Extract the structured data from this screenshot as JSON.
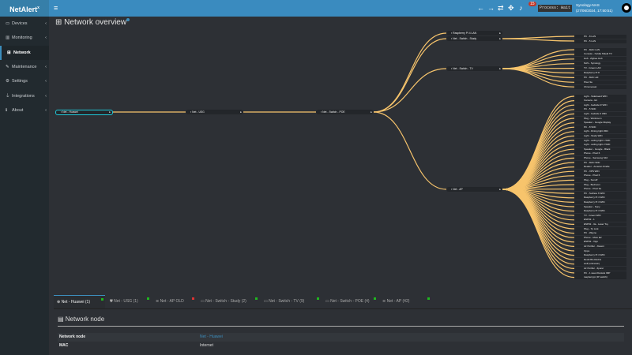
{
  "app": {
    "logo": "NetAlert",
    "logo_sup": "x",
    "menu_icon": "hamburger-icon"
  },
  "topbar": {
    "icons": [
      "arrow-left-icon",
      "arrow-right-icon",
      "refresh-icon",
      "move-icon",
      "bell-icon"
    ],
    "notifications": "15",
    "process": "Process: Wait",
    "host": "Synology-NAS",
    "datetime": "(27/06/2024, 17:50:51)"
  },
  "sidebar": {
    "items": [
      {
        "label": "Devices",
        "icon": "laptop-icon",
        "chev": "‹"
      },
      {
        "label": "Monitoring",
        "icon": "chart-icon",
        "chev": "‹"
      },
      {
        "label": "Network",
        "icon": "sitemap-icon",
        "chev": ""
      },
      {
        "label": "Maintenance",
        "icon": "wrench-icon",
        "chev": "‹"
      },
      {
        "label": "Settings",
        "icon": "gear-icon",
        "chev": "‹"
      },
      {
        "label": "Integrations",
        "icon": "plug-icon",
        "chev": "‹"
      },
      {
        "label": "About",
        "icon": "info-icon",
        "chev": "‹"
      }
    ]
  },
  "page": {
    "title": "Network overview"
  },
  "colors": {
    "link": "#f7c46c",
    "accent": "#3c8dbc",
    "root_border": "#1ec8d8",
    "online": "#1fb71f",
    "offline": "#dd3333"
  },
  "tree": {
    "root": "Net - Huawei",
    "usg": "Net - USG",
    "poe": "Net - Switch - POE",
    "poe_children": [
      "Raspberry Pi 4 LAN",
      "Net - Switch - Study",
      "Net - Switch - TV",
      "Net - AP"
    ],
    "study_children": [
      "PC - 8 LAN",
      "PC - 5 LAN"
    ],
    "tv_children": [
      "PC - MAC LAN",
      "Console - Nvidia Shield TV",
      "Hub - Zigbee Hub",
      "NAS - Synology",
      "TV - Green LAN",
      "Raspberry Pi 8",
      "PC - MAC old",
      "Pixel 3a",
      "Chromecast"
    ],
    "ap_children": [
      "Light - Sideboard WiFi",
      "Camera - E1",
      "Light - bedside R WiFi",
      "PC - 5 WiFi",
      "Light - bedside 3 WiFi",
      "Plug - Workroom",
      "Speaker - Google Display",
      "PC - 8 WiFi",
      "Light - Dining light WiFi",
      "Light - Study WiFi",
      "Light - ceiling light 1 WiFi",
      "Light - ceiling light 2 WiFi",
      "Speaker - Google - Black",
      "Phone - Pixel 6",
      "Phone - Samsung S10",
      "PC - MAC WiFi",
      "Reader - Amazon Kindle",
      "PC - XPS WiFi",
      "Phone - Pixel 6",
      "Plug - Sonoff",
      "Plug - Bedroom",
      "Phone - Pixel 3a",
      "PC - Surface 6 WiFi",
      "Raspberry Pi 4 WiFi",
      "Raspberry Pi 4 WiFi",
      "Speaker - Sony",
      "Raspberry Pi 4 WiFi",
      "TV - Green WiFi",
      "ESP32 - 1",
      "ESP32 - 3a - Laser Toy",
      "Plug - Tp Link",
      "PC - Wayne",
      "Phone - Moto E2",
      "ESP32 - Vigo",
      "Air Purifier - Xiaomi",
      "Oppo",
      "Raspberry Pi 4 WiFi",
      "Redmi5A-Redmi",
      "wolf (unknown)",
      "Air Purifier - Ilpurer",
      "PC - 1 week Daniels IMP",
      "raspberrypi (IP switch)"
    ]
  },
  "tabs": [
    {
      "label": "Net - Huawei (1)",
      "icon": "globe-icon",
      "status": "online",
      "active": true
    },
    {
      "label": "Net - USG (1)",
      "icon": "shield-icon",
      "status": "online"
    },
    {
      "label": "Net - AP OLD",
      "icon": "wifi-icon",
      "status": "offline"
    },
    {
      "label": "Net - Switch - Study (2)",
      "icon": "switch-icon",
      "status": "online"
    },
    {
      "label": "Net - Switch - TV (9)",
      "icon": "switch-icon",
      "status": "online"
    },
    {
      "label": "Net - Switch - POE (4)",
      "icon": "switch-icon",
      "status": "online"
    },
    {
      "label": "Net - AP (42)",
      "icon": "wifi-icon",
      "status": "online"
    }
  ],
  "node_panel": {
    "title": "Network node",
    "rows": [
      {
        "key": "Network node",
        "value": "Net - Huawei",
        "link": true
      },
      {
        "key": "MAC",
        "value": "Internet"
      }
    ]
  }
}
